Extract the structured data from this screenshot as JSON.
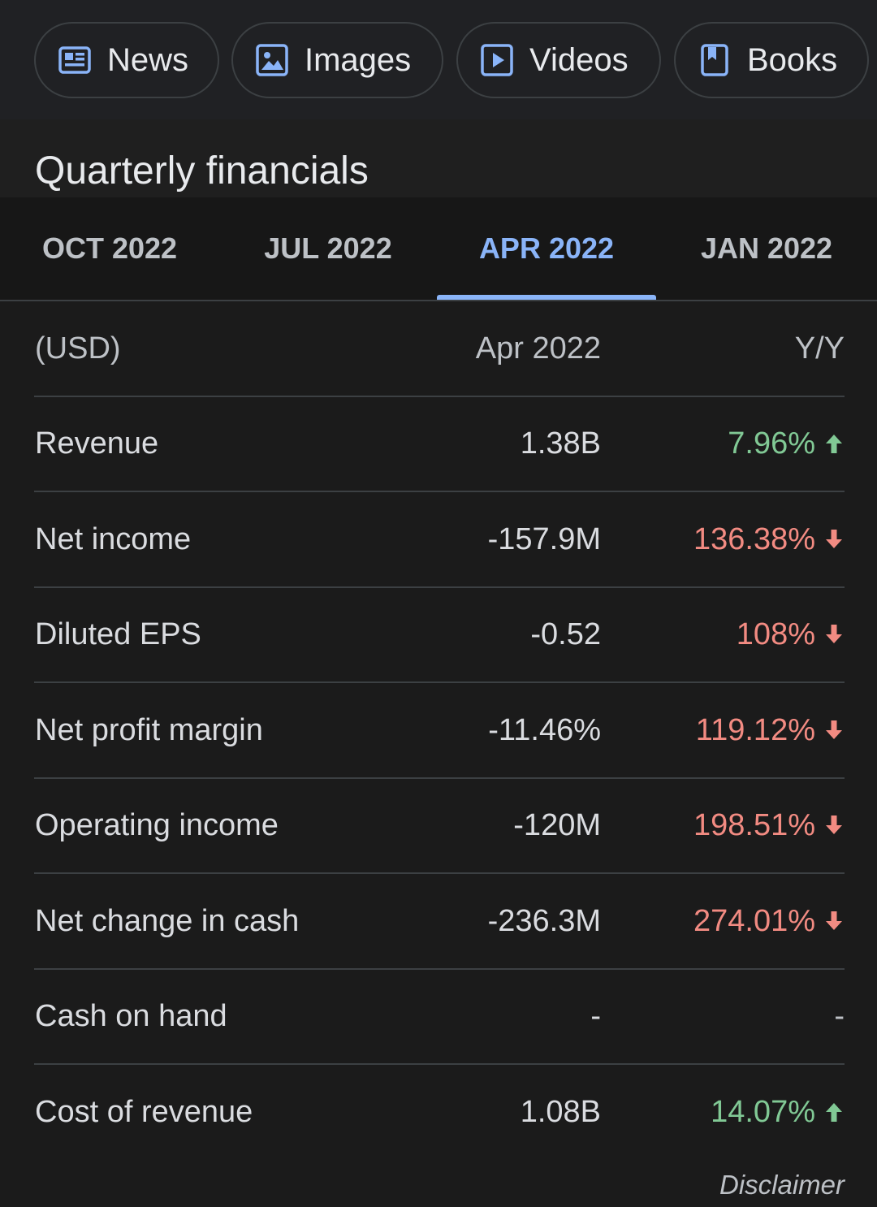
{
  "chips": {
    "news": {
      "label": "News",
      "icon": "newspaper-icon"
    },
    "images": {
      "label": "Images",
      "icon": "image-icon"
    },
    "videos": {
      "label": "Videos",
      "icon": "play-video-icon"
    },
    "books": {
      "label": "Books",
      "icon": "book-icon"
    }
  },
  "section": {
    "title": "Quarterly financials"
  },
  "tabs": [
    {
      "label": "OCT 2022",
      "selected": false
    },
    {
      "label": "JUL 2022",
      "selected": false
    },
    {
      "label": "APR 2022",
      "selected": true
    },
    {
      "label": "JAN 2022",
      "selected": false
    }
  ],
  "table": {
    "header": {
      "label": "(USD)",
      "value": "Apr 2022",
      "yoy": "Y/Y"
    },
    "rows": [
      {
        "label": "Revenue",
        "value": "1.38B",
        "yoy": "7.96%",
        "trend": "up"
      },
      {
        "label": "Net income",
        "value": "-157.9M",
        "yoy": "136.38%",
        "trend": "down"
      },
      {
        "label": "Diluted EPS",
        "value": "-0.52",
        "yoy": "108%",
        "trend": "down"
      },
      {
        "label": "Net profit margin",
        "value": "-11.46%",
        "yoy": "119.12%",
        "trend": "down"
      },
      {
        "label": "Operating income",
        "value": "-120M",
        "yoy": "198.51%",
        "trend": "down"
      },
      {
        "label": "Net change in cash",
        "value": "-236.3M",
        "yoy": "274.01%",
        "trend": "down"
      },
      {
        "label": "Cash on hand",
        "value": "-",
        "yoy": "-",
        "trend": "none"
      },
      {
        "label": "Cost of revenue",
        "value": "1.08B",
        "yoy": "14.07%",
        "trend": "up"
      }
    ]
  },
  "footer": {
    "disclaimer": "Disclaimer"
  },
  "colors": {
    "accent": "#8ab4f8",
    "up": "#81c995",
    "down": "#f28b82",
    "background": "#1f1f1f"
  }
}
